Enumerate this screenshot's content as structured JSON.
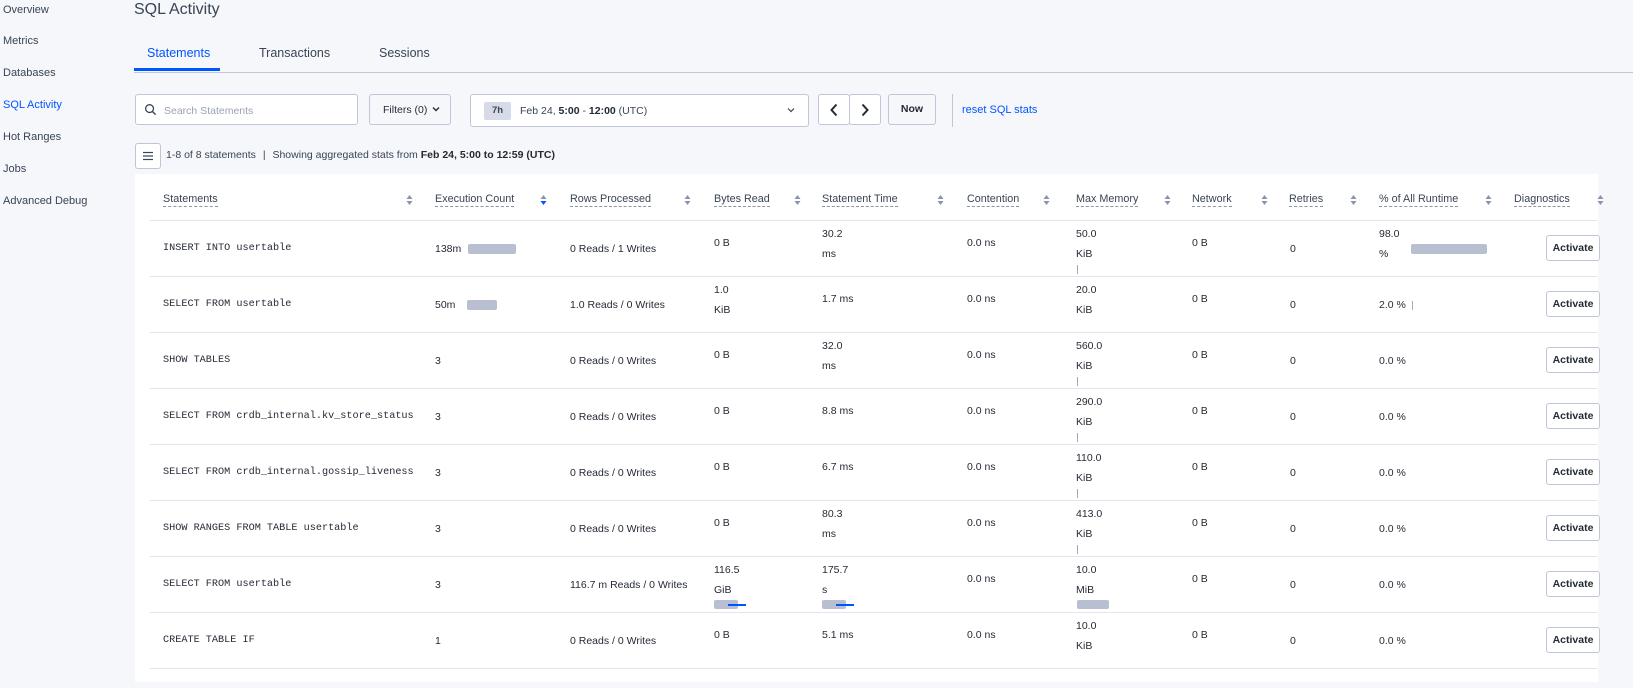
{
  "sidebar": {
    "items": [
      {
        "label": "Overview",
        "active": false
      },
      {
        "label": "Metrics",
        "active": false
      },
      {
        "label": "Databases",
        "active": false
      },
      {
        "label": "SQL Activity",
        "active": true
      },
      {
        "label": "Hot Ranges",
        "active": false
      },
      {
        "label": "Jobs",
        "active": false
      },
      {
        "label": "Advanced Debug",
        "active": false
      }
    ]
  },
  "page": {
    "title": "SQL Activity"
  },
  "tabs": [
    {
      "label": "Statements",
      "active": true
    },
    {
      "label": "Transactions",
      "active": false
    },
    {
      "label": "Sessions",
      "active": false
    }
  ],
  "toolbar": {
    "search_placeholder": "Search Statements",
    "search_value": "",
    "filters_label": "Filters (0)",
    "time_chip": "7h",
    "time_date": "Feb 24,",
    "time_start": "5:00",
    "time_dash": "-",
    "time_end": "12:00",
    "time_tz": "(UTC)",
    "now_label": "Now",
    "reset_label": "reset SQL stats"
  },
  "summary": {
    "count": "1-8 of 8 statements",
    "separator": "|",
    "stats_prefix": "Showing aggregated stats from",
    "stats_range": "Feb 24, 5:00 to 12:59 (UTC)"
  },
  "table": {
    "headers": [
      "Statements",
      "Execution Count",
      "Rows Processed",
      "Bytes Read",
      "Statement Time",
      "Contention",
      "Max Memory",
      "Network",
      "Retries",
      "% of All Runtime",
      "Diagnostics"
    ],
    "sorted_column": "Execution Count",
    "action_label": "Activate",
    "rows": [
      {
        "statement": "INSERT INTO usertable",
        "exec_count": "138m",
        "exec_fraction": 1.0,
        "rows_processed": "0 Reads / 1 Writes",
        "bytes_read": [
          "0 B"
        ],
        "statement_time": [
          "30.2",
          "ms"
        ],
        "contention": "0.0 ns",
        "max_memory": [
          "50.0",
          "KiB"
        ],
        "network": "0 B",
        "retries": "0",
        "runtime_pct": [
          "98.0",
          "%"
        ],
        "runtime_fraction": 0.98
      },
      {
        "statement": "SELECT FROM usertable",
        "exec_count": "50m",
        "exec_fraction": 0.62,
        "rows_processed": "1.0 Reads / 0 Writes",
        "bytes_read": [
          "1.0",
          "KiB"
        ],
        "statement_time": [
          "1.7 ms"
        ],
        "contention": "0.0 ns",
        "max_memory": [
          "20.0",
          "KiB"
        ],
        "network": "0 B",
        "retries": "0",
        "runtime_pct": [
          "2.0 %"
        ],
        "runtime_fraction": 0.02
      },
      {
        "statement": "SHOW TABLES",
        "exec_count": "3",
        "exec_fraction": 0,
        "rows_processed": "0 Reads / 0 Writes",
        "bytes_read": [
          "0 B"
        ],
        "statement_time": [
          "32.0",
          "ms"
        ],
        "contention": "0.0 ns",
        "max_memory": [
          "560.0",
          "KiB"
        ],
        "network": "0 B",
        "retries": "0",
        "runtime_pct": [
          "0.0 %"
        ],
        "runtime_fraction": 0
      },
      {
        "statement": "SELECT FROM crdb_internal.kv_store_status",
        "exec_count": "3",
        "exec_fraction": 0,
        "rows_processed": "0 Reads / 0 Writes",
        "bytes_read": [
          "0 B"
        ],
        "statement_time": [
          "8.8 ms"
        ],
        "contention": "0.0 ns",
        "max_memory": [
          "290.0",
          "KiB"
        ],
        "network": "0 B",
        "retries": "0",
        "runtime_pct": [
          "0.0 %"
        ],
        "runtime_fraction": 0
      },
      {
        "statement": "SELECT FROM crdb_internal.gossip_liveness",
        "exec_count": "3",
        "exec_fraction": 0,
        "rows_processed": "0 Reads / 0 Writes",
        "bytes_read": [
          "0 B"
        ],
        "statement_time": [
          "6.7 ms"
        ],
        "contention": "0.0 ns",
        "max_memory": [
          "110.0",
          "KiB"
        ],
        "network": "0 B",
        "retries": "0",
        "runtime_pct": [
          "0.0 %"
        ],
        "runtime_fraction": 0
      },
      {
        "statement": "SHOW RANGES FROM TABLE usertable",
        "exec_count": "3",
        "exec_fraction": 0,
        "rows_processed": "0 Reads / 0 Writes",
        "bytes_read": [
          "0 B"
        ],
        "statement_time": [
          "80.3",
          "ms"
        ],
        "contention": "0.0 ns",
        "max_memory": [
          "413.0",
          "KiB"
        ],
        "network": "0 B",
        "retries": "0",
        "runtime_pct": [
          "0.0 %"
        ],
        "runtime_fraction": 0
      },
      {
        "statement": "SELECT FROM usertable",
        "exec_count": "3",
        "exec_fraction": 0,
        "rows_processed": "116.7 m Reads / 0 Writes",
        "bytes_read": [
          "116.5",
          "GiB"
        ],
        "statement_time": [
          "175.7",
          "s"
        ],
        "contention": "0.0 ns",
        "max_memory": [
          "10.0",
          "MiB"
        ],
        "network": "0 B",
        "retries": "0",
        "runtime_pct": [
          "0.0 %"
        ],
        "runtime_fraction": 0
      },
      {
        "statement": "CREATE TABLE IF",
        "exec_count": "1",
        "exec_fraction": 0,
        "rows_processed": "0 Reads / 0 Writes",
        "bytes_read": [
          "0 B"
        ],
        "statement_time": [
          "5.1 ms"
        ],
        "contention": "0.0 ns",
        "max_memory": [
          "10.0",
          "KiB"
        ],
        "network": "0 B",
        "retries": "0",
        "runtime_pct": [
          "0.0 %"
        ],
        "runtime_fraction": 0
      }
    ]
  },
  "colors": {
    "accent": "#0055ff",
    "bar": "#b8bfd0",
    "text": "#242a35",
    "background": "#f5f7fa"
  }
}
